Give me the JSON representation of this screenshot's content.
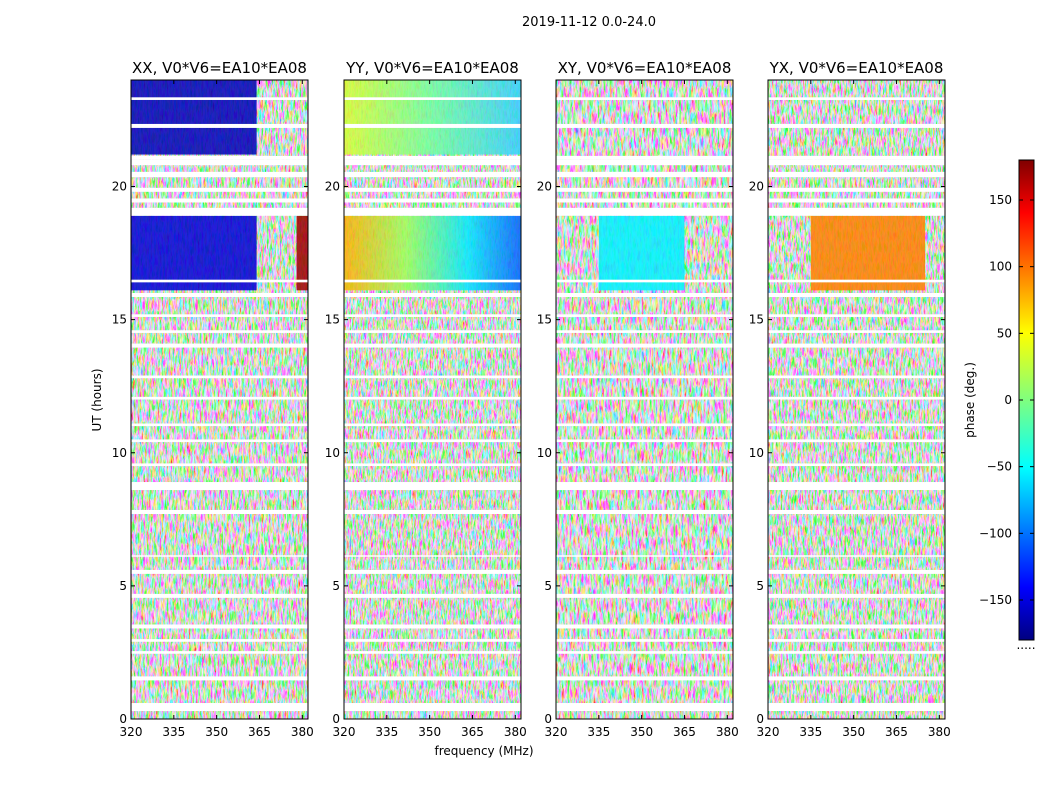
{
  "chart_data": {
    "type": "heatmap",
    "suptitle": "2019-11-12 0.0-24.0",
    "xlabel": "frequency (MHz)",
    "ylabel": "UT (hours)",
    "xlim": [
      320,
      382
    ],
    "ylim": [
      0,
      24
    ],
    "xticks": [
      320,
      335,
      350,
      365,
      380
    ],
    "yticks": [
      0,
      5,
      10,
      15,
      20
    ],
    "colorbar": {
      "label": "phase (deg.)",
      "range": [
        -180,
        180
      ],
      "ticks": [
        150,
        100,
        50,
        0,
        -50,
        -100,
        -150
      ],
      "tick_labels": [
        "150",
        "100",
        "50",
        "0",
        "−50",
        "−100",
        "−150"
      ],
      "colormap": "jet",
      "footer": "....."
    },
    "panels": [
      {
        "title": "XX, V0*V6=EA10*EA08",
        "pol": "XX"
      },
      {
        "title": "YY, V0*V6=EA10*EA08",
        "pol": "YY"
      },
      {
        "title": "XY, V0*V6=EA10*EA08",
        "pol": "XY"
      },
      {
        "title": "YX, V0*V6=EA10*EA08",
        "pol": "YX"
      }
    ],
    "flagged_ut_hours": [
      [
        0.3,
        0.6
      ],
      [
        1.45,
        1.6
      ],
      [
        2.45,
        2.55
      ],
      [
        2.9,
        3.0
      ],
      [
        3.4,
        3.55
      ],
      [
        4.55,
        4.7
      ],
      [
        5.45,
        5.6
      ],
      [
        6.1,
        6.15
      ],
      [
        7.7,
        7.85
      ],
      [
        8.6,
        8.9
      ],
      [
        9.5,
        9.6
      ],
      [
        10.4,
        10.5
      ],
      [
        11.0,
        11.1
      ],
      [
        12.0,
        12.1
      ],
      [
        12.8,
        12.9
      ],
      [
        13.95,
        14.1
      ],
      [
        14.5,
        14.6
      ],
      [
        15.1,
        15.2
      ],
      [
        15.85,
        16.0
      ],
      [
        16.4,
        16.5
      ],
      [
        18.9,
        19.2
      ],
      [
        19.4,
        19.55
      ],
      [
        19.8,
        19.95
      ],
      [
        20.35,
        20.55
      ],
      [
        20.8,
        21.0
      ],
      [
        21.0,
        21.15
      ],
      [
        22.2,
        22.35
      ],
      [
        23.25,
        23.35
      ]
    ],
    "coherent_phase_segments": [
      {
        "pol": "XX",
        "ut_range": [
          16.1,
          18.9
        ],
        "freq_range": [
          320,
          364
        ],
        "phase_deg": -150
      },
      {
        "pol": "XX",
        "ut_range": [
          16.1,
          18.9
        ],
        "freq_range": [
          378,
          382
        ],
        "phase_deg": 170
      },
      {
        "pol": "XX",
        "ut_range": [
          21.2,
          24.0
        ],
        "freq_range": [
          320,
          364
        ],
        "phase_deg": -160
      },
      {
        "pol": "YY",
        "ut_range": [
          16.1,
          18.9
        ],
        "freq_range": [
          320,
          382
        ],
        "phase_start_deg": 70,
        "phase_end_deg": -120
      },
      {
        "pol": "YY",
        "ut_range": [
          21.2,
          24.0
        ],
        "freq_range": [
          320,
          382
        ],
        "phase_start_deg": 20,
        "phase_end_deg": -20
      },
      {
        "pol": "XY",
        "ut_range": [
          16.1,
          18.9
        ],
        "freq_range": [
          335,
          365
        ],
        "phase_deg": -50
      },
      {
        "pol": "YX",
        "ut_range": [
          16.1,
          18.9
        ],
        "freq_range": [
          335,
          375
        ],
        "phase_deg": 90
      }
    ]
  }
}
